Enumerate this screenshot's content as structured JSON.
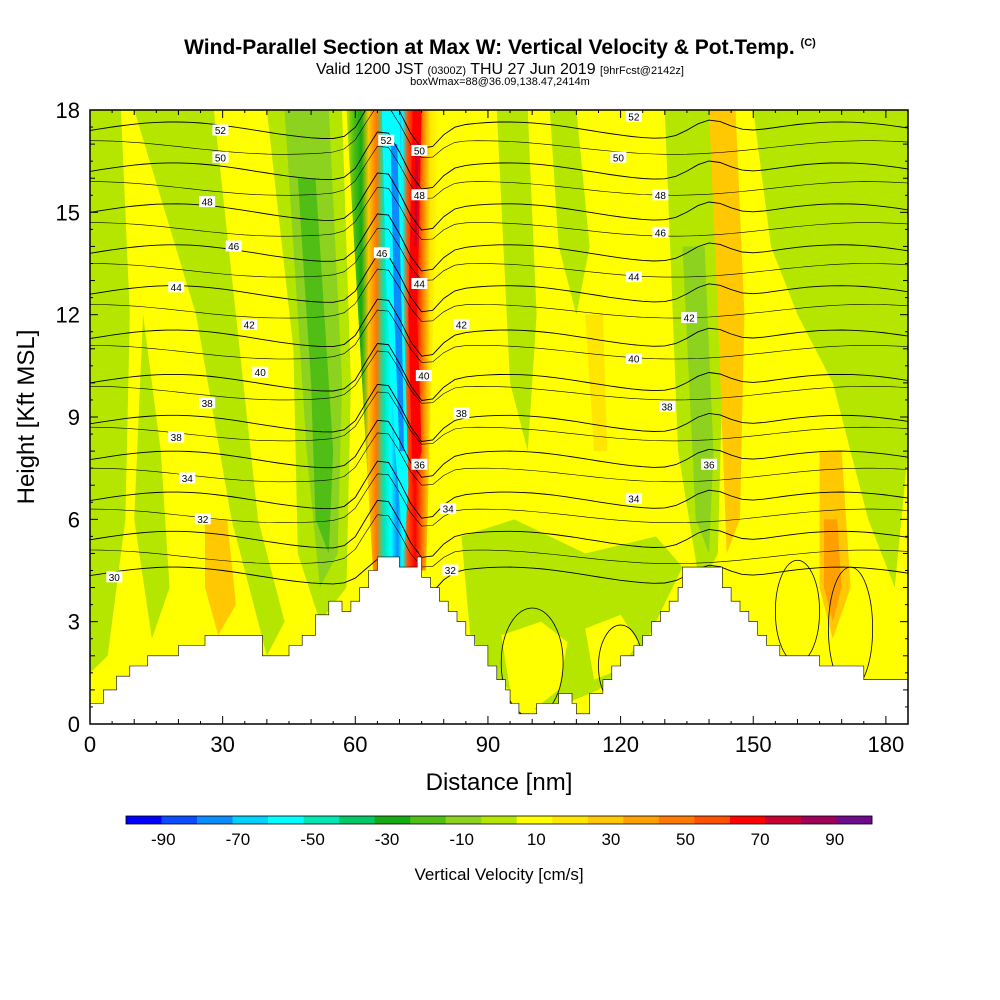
{
  "header": {
    "title": "Wind-Parallel Section at Max W: Vertical Velocity & Pot.Temp.",
    "title_mark": "(C)",
    "valid_prefix": "Valid 1200 JST",
    "valid_utc": "(0300Z)",
    "valid_date": "THU 27 Jun 2019",
    "forecast": "[9hrFcst@2142z]",
    "box_info": "boxWmax=88@36.09,138.47,2414m"
  },
  "chart_data": {
    "type": "heatmap",
    "xlabel": "Distance [nm]",
    "ylabel": "Height [Kft MSL]",
    "xlim": [
      0,
      185
    ],
    "ylim": [
      0,
      18
    ],
    "x_ticks": [
      "0",
      "30",
      "60",
      "90",
      "120",
      "150",
      "180"
    ],
    "y_ticks": [
      "0",
      "3",
      "6",
      "9",
      "12",
      "15",
      "18"
    ],
    "colorbar": {
      "label": "Vertical Velocity [cm/s]",
      "tick_labels": [
        "-90",
        "-70",
        "-50",
        "-30",
        "-10",
        "10",
        "30",
        "50",
        "70",
        "90"
      ],
      "bins": [
        -100,
        -90,
        -80,
        -70,
        -60,
        -50,
        -40,
        -30,
        -20,
        -10,
        0,
        10,
        20,
        30,
        40,
        50,
        60,
        70,
        80,
        90,
        100
      ],
      "colors": [
        "#0000ff",
        "#0a4cff",
        "#0a8cff",
        "#00d2ff",
        "#00ffff",
        "#00e6b4",
        "#00c864",
        "#14aa14",
        "#50be14",
        "#8cd21e",
        "#b4e600",
        "#ffff00",
        "#ffe600",
        "#ffc800",
        "#ffa000",
        "#ff7800",
        "#ff5000",
        "#ff0000",
        "#c80032",
        "#a0005a",
        "#6e0a8c"
      ]
    },
    "terrain_profile": [
      [
        0,
        0.6
      ],
      [
        3,
        0.6
      ],
      [
        3,
        1.0
      ],
      [
        6,
        1.0
      ],
      [
        6,
        1.4
      ],
      [
        9,
        1.4
      ],
      [
        9,
        1.7
      ],
      [
        13,
        1.7
      ],
      [
        13,
        2.0
      ],
      [
        20,
        2.0
      ],
      [
        20,
        2.3
      ],
      [
        26,
        2.3
      ],
      [
        26,
        2.6
      ],
      [
        33,
        2.6
      ],
      [
        33,
        2.6
      ],
      [
        39,
        2.6
      ],
      [
        39,
        2.0
      ],
      [
        45,
        2.0
      ],
      [
        45,
        2.3
      ],
      [
        48,
        2.3
      ],
      [
        48,
        2.6
      ],
      [
        51,
        2.6
      ],
      [
        51,
        3.2
      ],
      [
        54,
        3.2
      ],
      [
        54,
        3.6
      ],
      [
        57,
        3.6
      ],
      [
        57,
        3.3
      ],
      [
        59,
        3.3
      ],
      [
        59,
        3.6
      ],
      [
        61,
        3.6
      ],
      [
        61,
        4.0
      ],
      [
        63,
        4.0
      ],
      [
        63,
        4.5
      ],
      [
        65,
        4.5
      ],
      [
        65,
        4.9
      ],
      [
        70,
        4.9
      ],
      [
        70,
        4.6
      ],
      [
        74,
        4.6
      ],
      [
        74,
        4.9
      ],
      [
        75,
        4.9
      ],
      [
        75,
        4.3
      ],
      [
        77,
        4.3
      ],
      [
        77,
        4.0
      ],
      [
        79,
        4.0
      ],
      [
        79,
        3.6
      ],
      [
        81,
        3.6
      ],
      [
        81,
        3.3
      ],
      [
        83,
        3.3
      ],
      [
        83,
        3.0
      ],
      [
        85,
        3.0
      ],
      [
        85,
        2.6
      ],
      [
        87,
        2.6
      ],
      [
        87,
        2.3
      ],
      [
        90,
        2.3
      ],
      [
        90,
        1.7
      ],
      [
        92,
        1.7
      ],
      [
        92,
        1.3
      ],
      [
        94,
        1.3
      ],
      [
        94,
        1.0
      ],
      [
        95,
        1.0
      ],
      [
        95,
        0.6
      ],
      [
        97,
        0.6
      ],
      [
        97,
        0.3
      ],
      [
        101,
        0.3
      ],
      [
        101,
        0.6
      ],
      [
        106,
        0.6
      ],
      [
        106,
        0.9
      ],
      [
        109,
        0.9
      ],
      [
        109,
        0.6
      ],
      [
        110,
        0.6
      ],
      [
        110,
        0.3
      ],
      [
        113,
        0.3
      ],
      [
        113,
        0.9
      ],
      [
        116,
        0.9
      ],
      [
        116,
        1.3
      ],
      [
        118,
        1.3
      ],
      [
        118,
        1.7
      ],
      [
        120,
        1.7
      ],
      [
        120,
        2.0
      ],
      [
        123,
        2.0
      ],
      [
        123,
        2.3
      ],
      [
        125,
        2.3
      ],
      [
        125,
        2.6
      ],
      [
        127,
        2.6
      ],
      [
        127,
        3.0
      ],
      [
        129,
        3.0
      ],
      [
        129,
        3.3
      ],
      [
        131,
        3.3
      ],
      [
        131,
        3.6
      ],
      [
        133,
        3.6
      ],
      [
        133,
        4.0
      ],
      [
        134,
        4.0
      ],
      [
        134,
        4.6
      ],
      [
        143,
        4.6
      ],
      [
        143,
        4.0
      ],
      [
        145,
        4.0
      ],
      [
        145,
        3.6
      ],
      [
        147,
        3.6
      ],
      [
        147,
        3.3
      ],
      [
        149,
        3.3
      ],
      [
        149,
        3.0
      ],
      [
        151,
        3.0
      ],
      [
        151,
        2.6
      ],
      [
        153,
        2.6
      ],
      [
        153,
        2.3
      ],
      [
        156,
        2.3
      ],
      [
        156,
        2.0
      ],
      [
        160,
        2.0
      ],
      [
        160,
        2.0
      ],
      [
        165,
        2.0
      ],
      [
        165,
        1.7
      ],
      [
        175,
        1.7
      ],
      [
        175,
        1.3
      ],
      [
        185,
        1.3
      ],
      [
        185,
        1.0
      ]
    ],
    "isentropes": {
      "levels": [
        30,
        32,
        34,
        36,
        38,
        40,
        42,
        44,
        46,
        48,
        50,
        52
      ],
      "labels": [
        {
          "text": "52",
          "x": 29.5,
          "y": 17.4
        },
        {
          "text": "50",
          "x": 29.5,
          "y": 16.6
        },
        {
          "text": "48",
          "x": 26.5,
          "y": 15.3
        },
        {
          "text": "46",
          "x": 32.5,
          "y": 14.0
        },
        {
          "text": "44",
          "x": 19.5,
          "y": 12.8
        },
        {
          "text": "42",
          "x": 36,
          "y": 11.7
        },
        {
          "text": "40",
          "x": 38.5,
          "y": 10.3
        },
        {
          "text": "38",
          "x": 26.5,
          "y": 9.4
        },
        {
          "text": "38",
          "x": 19.5,
          "y": 8.4
        },
        {
          "text": "34",
          "x": 22,
          "y": 7.2
        },
        {
          "text": "32",
          "x": 25.5,
          "y": 6.0
        },
        {
          "text": "30",
          "x": 5.5,
          "y": 4.3
        },
        {
          "text": "52",
          "x": 67,
          "y": 17.1
        },
        {
          "text": "50",
          "x": 74.5,
          "y": 16.8
        },
        {
          "text": "48",
          "x": 74.5,
          "y": 15.5
        },
        {
          "text": "46",
          "x": 66,
          "y": 13.8
        },
        {
          "text": "44",
          "x": 74.5,
          "y": 12.9
        },
        {
          "text": "42",
          "x": 84,
          "y": 11.7
        },
        {
          "text": "40",
          "x": 75.5,
          "y": 10.2
        },
        {
          "text": "38",
          "x": 84,
          "y": 9.1
        },
        {
          "text": "36",
          "x": 74.5,
          "y": 7.6
        },
        {
          "text": "34",
          "x": 81,
          "y": 6.3
        },
        {
          "text": "32",
          "x": 81.5,
          "y": 4.5
        },
        {
          "text": "52",
          "x": 123,
          "y": 17.8
        },
        {
          "text": "50",
          "x": 119.5,
          "y": 16.6
        },
        {
          "text": "48",
          "x": 129,
          "y": 15.5
        },
        {
          "text": "46",
          "x": 129,
          "y": 14.4
        },
        {
          "text": "44",
          "x": 123,
          "y": 13.1
        },
        {
          "text": "42",
          "x": 135.5,
          "y": 11.9
        },
        {
          "text": "40",
          "x": 123,
          "y": 10.7
        },
        {
          "text": "38",
          "x": 130.5,
          "y": 9.3
        },
        {
          "text": "36",
          "x": 140,
          "y": 7.6
        },
        {
          "text": "34",
          "x": 123,
          "y": 6.6
        }
      ]
    }
  }
}
